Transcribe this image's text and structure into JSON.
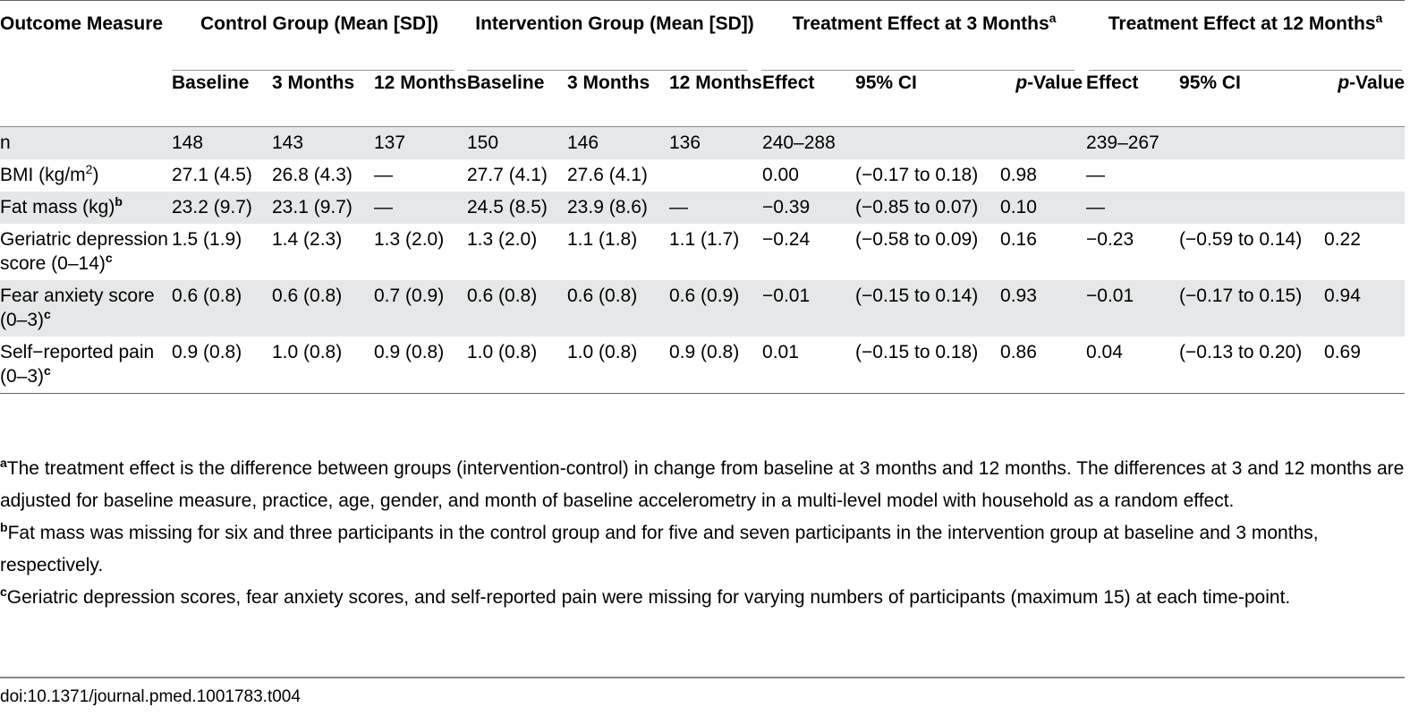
{
  "header": {
    "outcome": "Outcome Measure",
    "control": "Control Group (Mean [SD])",
    "intervention": "Intervention Group (Mean [SD])",
    "effect3": "Treatment Effect at 3 Months",
    "effect12": "Treatment Effect at 12 Months",
    "sup_a": "a",
    "sub": {
      "baseline": "Baseline",
      "m3": "3 Months",
      "m12": "12 Months",
      "effect": "Effect",
      "ci": "95% CI",
      "p_italic": "p",
      "p_rest": "-Value"
    }
  },
  "rows": [
    {
      "label": "n",
      "sup": "",
      "cells": [
        "148",
        "143",
        "137",
        "150",
        "146",
        "136",
        "240–288",
        "",
        "",
        "239–267",
        "",
        ""
      ]
    },
    {
      "label": "BMI (kg/m",
      "label_sup": "2",
      "label_after": ")",
      "sup": "",
      "cells": [
        "27.1 (4.5)",
        "26.8 (4.3)",
        "—",
        "27.7 (4.1)",
        "27.6 (4.1)",
        "",
        "0.00",
        "(−0.17 to 0.18)",
        "0.98",
        "—",
        "",
        ""
      ]
    },
    {
      "label": "Fat mass (kg)",
      "sup": "b",
      "cells": [
        "23.2 (9.7)",
        "23.1 (9.7)",
        "—",
        "24.5 (8.5)",
        "23.9 (8.6)",
        "—",
        "−0.39",
        "(−0.85 to 0.07)",
        "0.10",
        "—",
        "",
        ""
      ]
    },
    {
      "label": "Geriatric depression score (0–14)",
      "sup": "c",
      "cells": [
        "1.5 (1.9)",
        "1.4 (2.3)",
        "1.3 (2.0)",
        "1.3 (2.0)",
        "1.1 (1.8)",
        "1.1 (1.7)",
        "−0.24",
        "(−0.58 to 0.09)",
        "0.16",
        "−0.23",
        "(−0.59 to 0.14)",
        "0.22"
      ]
    },
    {
      "label": "Fear anxiety score (0–3)",
      "sup": "c",
      "cells": [
        "0.6 (0.8)",
        "0.6 (0.8)",
        "0.7 (0.9)",
        "0.6 (0.8)",
        "0.6 (0.8)",
        "0.6 (0.9)",
        "−0.01",
        "(−0.15 to 0.14)",
        "0.93",
        "−0.01",
        "(−0.17 to 0.15)",
        "0.94"
      ]
    },
    {
      "label": "Self−reported pain (0–3)",
      "sup": "c",
      "cells": [
        "0.9 (0.8)",
        "1.0 (0.8)",
        "0.9 (0.8)",
        "1.0 (0.8)",
        "1.0 (0.8)",
        "0.9 (0.8)",
        "0.01",
        "(−0.15 to 0.18)",
        "0.86",
        "0.04",
        "(−0.13 to 0.20)",
        "0.69"
      ]
    }
  ],
  "notes": [
    {
      "mark": "a",
      "text": "The treatment effect is the difference between groups (intervention-control) in change from baseline at 3 months and 12 months. The differences at 3 and 12 months are adjusted for baseline measure, practice, age, gender, and month of baseline accelerometry in a multi-level model with household as a random effect."
    },
    {
      "mark": "b",
      "text": "Fat mass was missing for six and three participants in the control group and for five and seven participants in the intervention group at baseline and 3 months, respectively."
    },
    {
      "mark": "c",
      "text": "Geriatric depression scores, fear anxiety scores, and self-reported pain were missing for varying numbers of participants (maximum 15) at each time-point."
    }
  ],
  "doi": "doi:10.1371/journal.pmed.1001783.t004"
}
